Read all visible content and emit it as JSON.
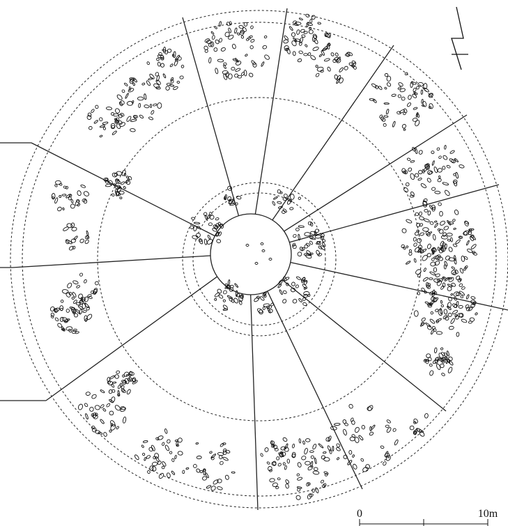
{
  "scale_bar": {
    "start": "0",
    "end": "10m"
  }
}
